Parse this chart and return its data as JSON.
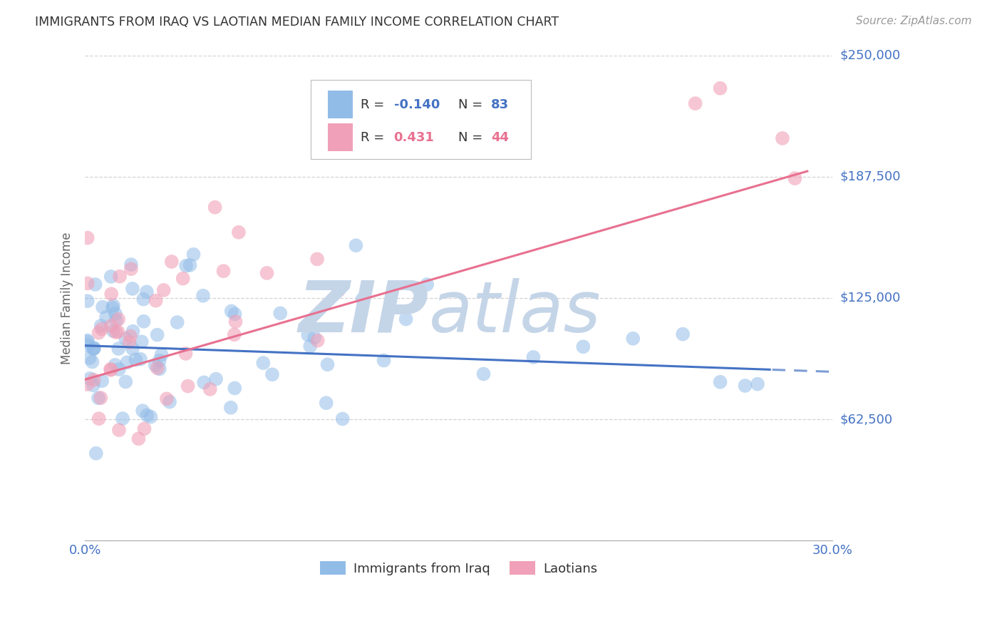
{
  "title": "IMMIGRANTS FROM IRAQ VS LAOTIAN MEDIAN FAMILY INCOME CORRELATION CHART",
  "source": "Source: ZipAtlas.com",
  "ylabel": "Median Family Income",
  "y_ticks": [
    0,
    62500,
    125000,
    187500,
    250000
  ],
  "y_tick_labels": [
    "",
    "$62,500",
    "$125,000",
    "$187,500",
    "$250,000"
  ],
  "xmin": 0.0,
  "xmax": 0.3,
  "ymin": 0,
  "ymax": 250000,
  "blue_R": -0.14,
  "blue_N": 83,
  "pink_R": 0.431,
  "pink_N": 44,
  "blue_color": "#92bce8",
  "pink_color": "#f0a0b8",
  "blue_line_color": "#4472c4",
  "pink_line_color": "#e87090",
  "background_color": "#ffffff",
  "grid_color": "#c8c8c8",
  "watermark_zip_color": "#c5d5e8",
  "watermark_atlas_color": "#c5d5e8",
  "title_color": "#333333",
  "axis_label_color": "#4472c4",
  "blue_intercept": 100000,
  "blue_slope": -50000,
  "pink_intercept": 85000,
  "pink_slope": 350000
}
